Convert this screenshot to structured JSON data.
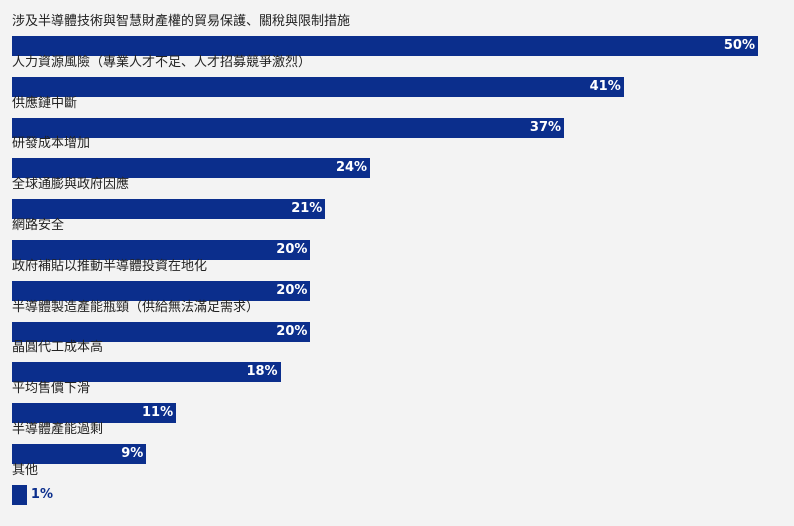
{
  "chart_data": {
    "type": "bar",
    "orientation": "horizontal",
    "categories": [
      "涉及半導體技術與智慧財產權的貿易保護、關稅與限制措施",
      "人力資源風險（專業人才不足、人才招募競爭激烈）",
      "供應鏈中斷",
      "研發成本增加",
      "全球通膨與政府因應",
      "網路安全",
      "政府補貼以推動半導體投資在地化",
      "半導體製造產能瓶頸（供給無法滿足需求）",
      "晶圓代工成本高",
      "平均售價下滑",
      "半導體產能過剩",
      "其他"
    ],
    "values": [
      50,
      41,
      37,
      24,
      21,
      20,
      20,
      20,
      18,
      11,
      9,
      1
    ],
    "value_labels": [
      "50%",
      "41%",
      "37%",
      "24%",
      "21%",
      "20%",
      "20%",
      "20%",
      "18%",
      "11%",
      "9%",
      "1%"
    ],
    "xlim": [
      0,
      50
    ],
    "grid": false,
    "bar_color": "#0b2e8c",
    "value_label_color_inside": "#ffffff",
    "value_label_color_outside": "#0b2e8c",
    "background": "#f3f3f3"
  }
}
